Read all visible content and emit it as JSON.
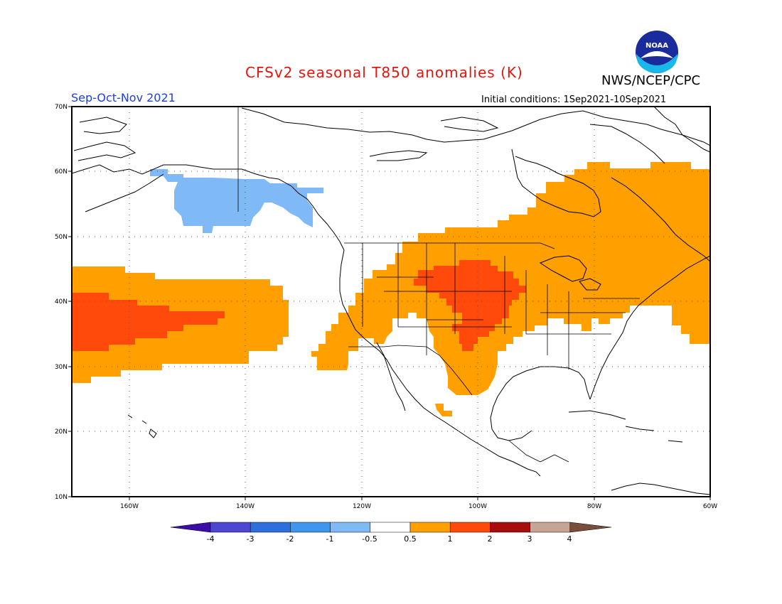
{
  "header": {
    "title": "CFSv2 seasonal T850 anomalies (K)",
    "agency": "NWS/NCEP/CPC",
    "season": "Sep-Oct-Nov 2021",
    "initial_conditions": "Initial conditions: 1Sep2021-10Sep2021",
    "logo_text": "NOAA"
  },
  "map": {
    "lat_labels": [
      "70N",
      "60N",
      "50N",
      "40N",
      "30N",
      "20N",
      "10N"
    ],
    "lon_labels": [
      "160W",
      "140W",
      "120W",
      "100W",
      "80W",
      "60W"
    ],
    "extent": {
      "lon": [
        -170,
        -60
      ],
      "lat": [
        10,
        70
      ]
    }
  },
  "colorbar": {
    "labels": [
      "-4",
      "-3",
      "-2",
      "-1",
      "-0.5",
      "0.5",
      "1",
      "2",
      "3",
      "4"
    ],
    "colors": [
      "#3b0ea8",
      "#4e46d2",
      "#2d6fdc",
      "#3f96ee",
      "#7fbaf6",
      "#ffffff",
      "#ff9f00",
      "#ff4a0c",
      "#a80d0d",
      "#c7a493",
      "#7a4e3c"
    ]
  },
  "anomaly_colors": {
    "cold": "#7fbaf6",
    "warm_05_1": "#ff9f00",
    "warm_1_2": "#ff4a0c"
  }
}
